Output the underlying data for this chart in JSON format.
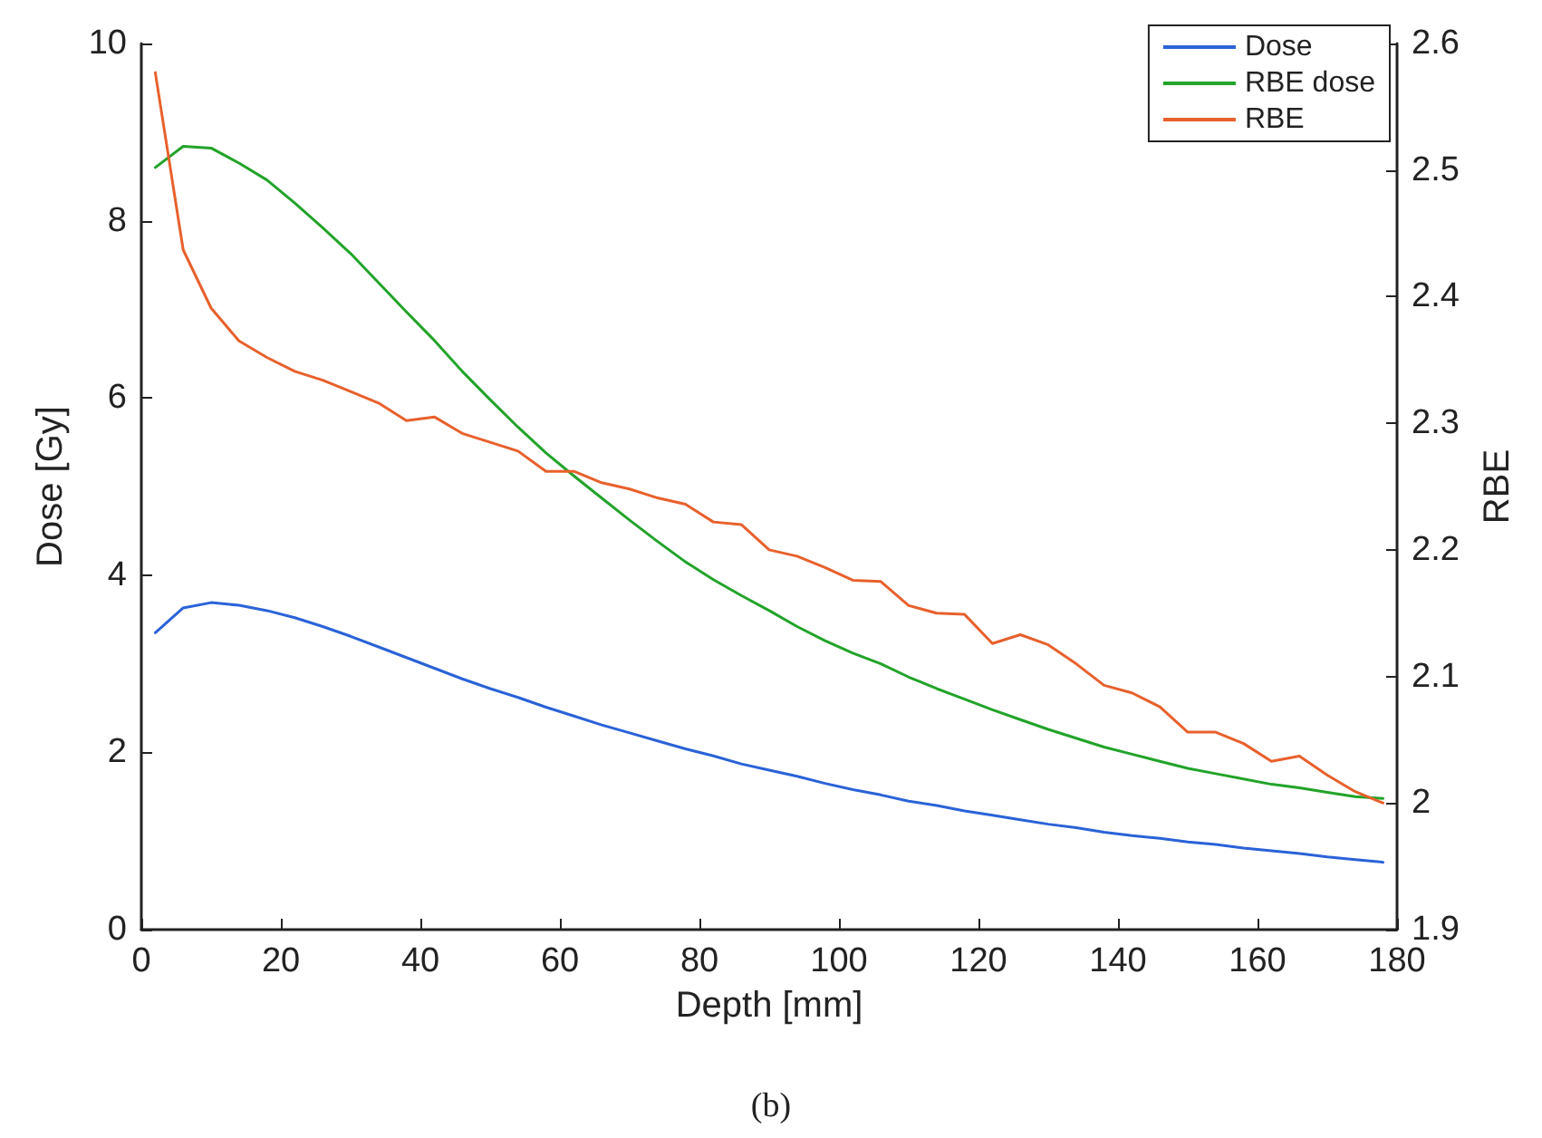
{
  "chart_data": {
    "type": "line",
    "xlabel": "Depth [mm]",
    "ylabel": "Dose [Gy]",
    "y2label": "RBE",
    "annotations": [
      "(b)"
    ],
    "x": [
      2,
      6,
      10,
      14,
      18,
      22,
      26,
      30,
      34,
      38,
      42,
      46,
      50,
      54,
      58,
      62,
      66,
      70,
      74,
      78,
      82,
      86,
      90,
      94,
      98,
      102,
      106,
      110,
      114,
      118,
      122,
      126,
      130,
      134,
      138,
      142,
      146,
      150,
      154,
      158,
      162,
      166,
      170,
      174,
      178
    ],
    "series": [
      {
        "name": "Dose",
        "color": "#2a62d8",
        "values": [
          3.35,
          3.63,
          3.69,
          3.66,
          3.6,
          3.52,
          3.42,
          3.31,
          3.19,
          3.07,
          2.95,
          2.83,
          2.72,
          2.62,
          2.51,
          2.41,
          2.31,
          2.22,
          2.13,
          2.04,
          1.96,
          1.87,
          1.8,
          1.73,
          1.65,
          1.58,
          1.52,
          1.45,
          1.4,
          1.34,
          1.29,
          1.24,
          1.19,
          1.15,
          1.1,
          1.06,
          1.03,
          0.99,
          0.96,
          0.92,
          0.89,
          0.86,
          0.82,
          0.79,
          0.76
        ]
      },
      {
        "name": "RBE dose",
        "color": "#22a32a",
        "values": [
          8.6,
          8.84,
          8.82,
          8.65,
          8.46,
          8.2,
          7.92,
          7.63,
          7.3,
          6.97,
          6.65,
          6.3,
          5.98,
          5.67,
          5.38,
          5.12,
          4.87,
          4.62,
          4.38,
          4.15,
          3.95,
          3.77,
          3.6,
          3.42,
          3.26,
          3.12,
          3.0,
          2.85,
          2.72,
          2.6,
          2.48,
          2.37,
          2.26,
          2.16,
          2.06,
          1.98,
          1.9,
          1.82,
          1.76,
          1.7,
          1.64,
          1.6,
          1.55,
          1.5,
          1.48
        ]
      },
      {
        "name": "RBE",
        "color": "#e8602c",
        "axis": "y2",
        "values": [
          2.577,
          2.437,
          2.391,
          2.365,
          2.352,
          2.341,
          2.334,
          2.325,
          2.316,
          2.302,
          2.305,
          2.292,
          2.285,
          2.278,
          2.262,
          2.262,
          2.253,
          2.248,
          2.241,
          2.236,
          2.222,
          2.22,
          2.2,
          2.195,
          2.186,
          2.176,
          2.175,
          2.156,
          2.15,
          2.149,
          2.126,
          2.133,
          2.125,
          2.11,
          2.093,
          2.087,
          2.076,
          2.056,
          2.056,
          2.047,
          2.033,
          2.037,
          2.022,
          2.009,
          2.0
        ]
      }
    ],
    "xlim": [
      0,
      180
    ],
    "xticks": [
      0,
      20,
      40,
      60,
      80,
      100,
      120,
      140,
      160,
      180
    ],
    "ylim": [
      0,
      10
    ],
    "yticks": [
      0,
      2,
      4,
      6,
      8,
      10
    ],
    "y2lim": [
      1.9,
      2.6
    ],
    "y2ticks": [
      1.9,
      2,
      2.1,
      2.2,
      2.3,
      2.4,
      2.5,
      2.6
    ],
    "grid": false,
    "legend": "top right",
    "marker": "none",
    "line_style": "solid"
  }
}
